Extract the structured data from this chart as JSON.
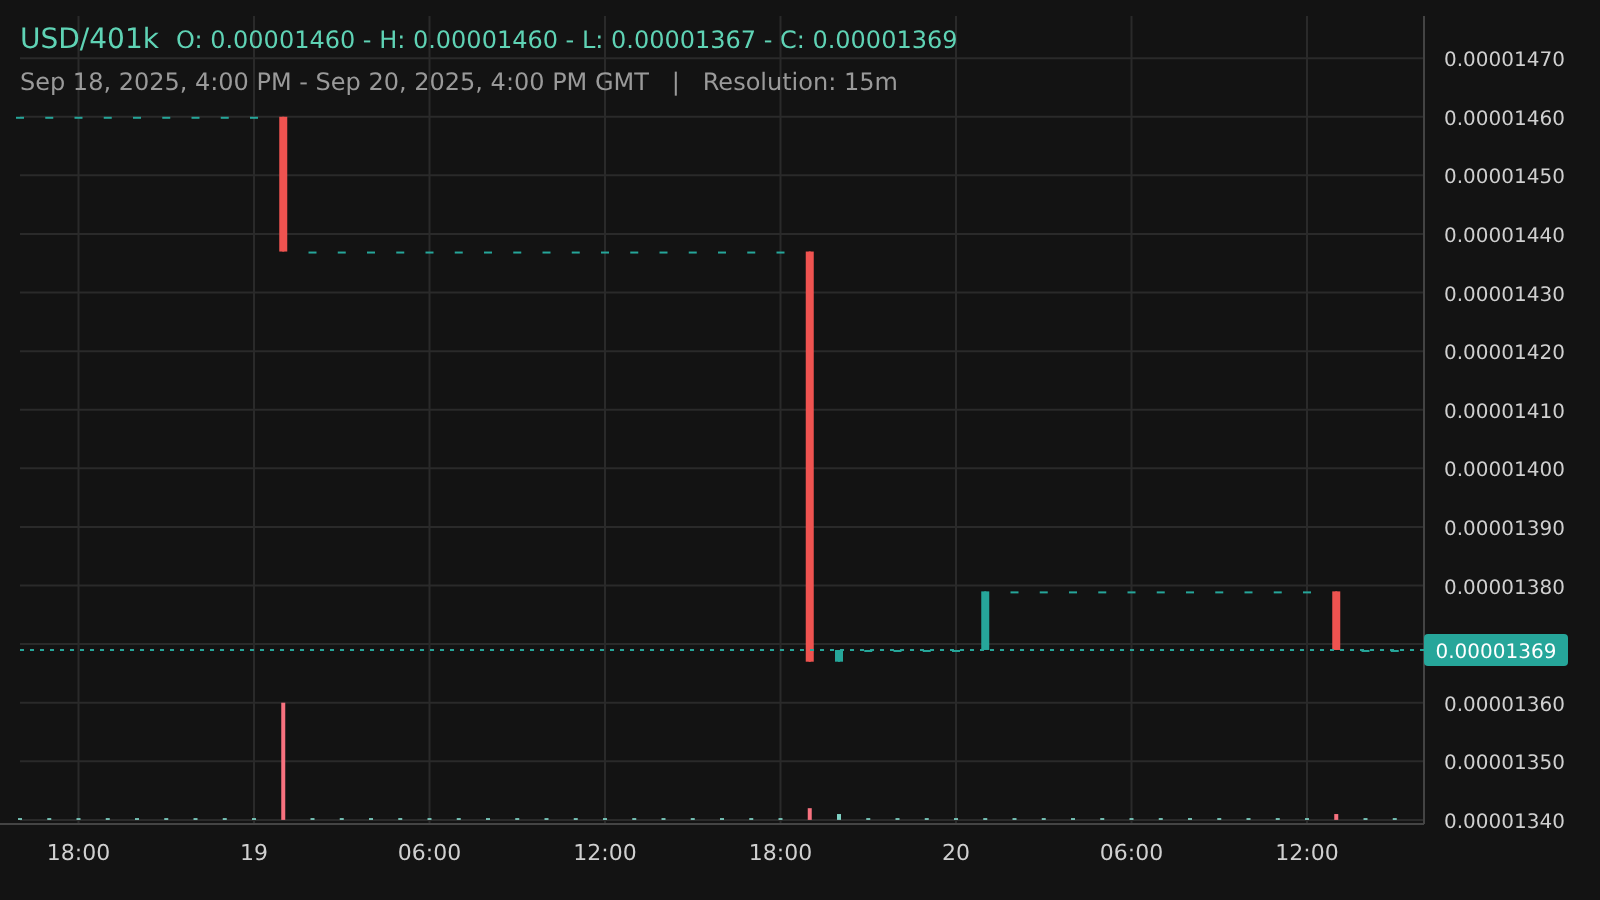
{
  "chart_data": {
    "type": "candlestick",
    "title": "USD/401k",
    "subtitle": "O: 0.00001460 - H: 0.00001460 - L: 0.00001367 - C: 0.00001369",
    "annotations": [
      "Sep 18, 2025, 4:00 PM - Sep 20, 2025, 4:00 PM GMT   |   Resolution: 15m"
    ],
    "x": [
      "2025-09-18T16:00",
      "2025-09-18T17:00",
      "2025-09-18T18:00",
      "2025-09-18T19:00",
      "2025-09-18T20:00",
      "2025-09-18T21:00",
      "2025-09-18T22:00",
      "2025-09-18T23:00",
      "2025-09-19T00:00",
      "2025-09-19T01:00",
      "2025-09-19T02:00",
      "2025-09-19T03:00",
      "2025-09-19T04:00",
      "2025-09-19T05:00",
      "2025-09-19T06:00",
      "2025-09-19T07:00",
      "2025-09-19T08:00",
      "2025-09-19T09:00",
      "2025-09-19T10:00",
      "2025-09-19T11:00",
      "2025-09-19T12:00",
      "2025-09-19T13:00",
      "2025-09-19T14:00",
      "2025-09-19T15:00",
      "2025-09-19T16:00",
      "2025-09-19T17:00",
      "2025-09-19T18:00",
      "2025-09-19T19:00",
      "2025-09-19T20:00",
      "2025-09-19T21:00",
      "2025-09-19T22:00",
      "2025-09-19T23:00",
      "2025-09-20T00:00",
      "2025-09-20T01:00",
      "2025-09-20T02:00",
      "2025-09-20T03:00",
      "2025-09-20T04:00",
      "2025-09-20T05:00",
      "2025-09-20T06:00",
      "2025-09-20T07:00",
      "2025-09-20T08:00",
      "2025-09-20T09:00",
      "2025-09-20T10:00",
      "2025-09-20T11:00",
      "2025-09-20T12:00",
      "2025-09-20T13:00",
      "2025-09-20T14:00",
      "2025-09-20T15:00"
    ],
    "ohlc": [
      [
        1.46e-05,
        1.46e-05,
        1.46e-05,
        1.46e-05
      ],
      [
        1.46e-05,
        1.46e-05,
        1.46e-05,
        1.46e-05
      ],
      [
        1.46e-05,
        1.46e-05,
        1.46e-05,
        1.46e-05
      ],
      [
        1.46e-05,
        1.46e-05,
        1.46e-05,
        1.46e-05
      ],
      [
        1.46e-05,
        1.46e-05,
        1.46e-05,
        1.46e-05
      ],
      [
        1.46e-05,
        1.46e-05,
        1.46e-05,
        1.46e-05
      ],
      [
        1.46e-05,
        1.46e-05,
        1.46e-05,
        1.46e-05
      ],
      [
        1.46e-05,
        1.46e-05,
        1.46e-05,
        1.46e-05
      ],
      [
        1.46e-05,
        1.46e-05,
        1.46e-05,
        1.46e-05
      ],
      [
        1.46e-05,
        1.46e-05,
        1.437e-05,
        1.437e-05
      ],
      [
        1.437e-05,
        1.437e-05,
        1.437e-05,
        1.437e-05
      ],
      [
        1.437e-05,
        1.437e-05,
        1.437e-05,
        1.437e-05
      ],
      [
        1.437e-05,
        1.437e-05,
        1.437e-05,
        1.437e-05
      ],
      [
        1.437e-05,
        1.437e-05,
        1.437e-05,
        1.437e-05
      ],
      [
        1.437e-05,
        1.437e-05,
        1.437e-05,
        1.437e-05
      ],
      [
        1.437e-05,
        1.437e-05,
        1.437e-05,
        1.437e-05
      ],
      [
        1.437e-05,
        1.437e-05,
        1.437e-05,
        1.437e-05
      ],
      [
        1.437e-05,
        1.437e-05,
        1.437e-05,
        1.437e-05
      ],
      [
        1.437e-05,
        1.437e-05,
        1.437e-05,
        1.437e-05
      ],
      [
        1.437e-05,
        1.437e-05,
        1.437e-05,
        1.437e-05
      ],
      [
        1.437e-05,
        1.437e-05,
        1.437e-05,
        1.437e-05
      ],
      [
        1.437e-05,
        1.437e-05,
        1.437e-05,
        1.437e-05
      ],
      [
        1.437e-05,
        1.437e-05,
        1.437e-05,
        1.437e-05
      ],
      [
        1.437e-05,
        1.437e-05,
        1.437e-05,
        1.437e-05
      ],
      [
        1.437e-05,
        1.437e-05,
        1.437e-05,
        1.437e-05
      ],
      [
        1.437e-05,
        1.437e-05,
        1.437e-05,
        1.437e-05
      ],
      [
        1.437e-05,
        1.437e-05,
        1.437e-05,
        1.437e-05
      ],
      [
        1.437e-05,
        1.437e-05,
        1.367e-05,
        1.367e-05
      ],
      [
        1.367e-05,
        1.369e-05,
        1.367e-05,
        1.369e-05
      ],
      [
        1.369e-05,
        1.369e-05,
        1.369e-05,
        1.369e-05
      ],
      [
        1.369e-05,
        1.369e-05,
        1.369e-05,
        1.369e-05
      ],
      [
        1.369e-05,
        1.369e-05,
        1.369e-05,
        1.369e-05
      ],
      [
        1.369e-05,
        1.369e-05,
        1.369e-05,
        1.369e-05
      ],
      [
        1.369e-05,
        1.379e-05,
        1.369e-05,
        1.379e-05
      ],
      [
        1.379e-05,
        1.379e-05,
        1.379e-05,
        1.379e-05
      ],
      [
        1.379e-05,
        1.379e-05,
        1.379e-05,
        1.379e-05
      ],
      [
        1.379e-05,
        1.379e-05,
        1.379e-05,
        1.379e-05
      ],
      [
        1.379e-05,
        1.379e-05,
        1.379e-05,
        1.379e-05
      ],
      [
        1.379e-05,
        1.379e-05,
        1.379e-05,
        1.379e-05
      ],
      [
        1.379e-05,
        1.379e-05,
        1.379e-05,
        1.379e-05
      ],
      [
        1.379e-05,
        1.379e-05,
        1.379e-05,
        1.379e-05
      ],
      [
        1.379e-05,
        1.379e-05,
        1.379e-05,
        1.379e-05
      ],
      [
        1.379e-05,
        1.379e-05,
        1.379e-05,
        1.379e-05
      ],
      [
        1.379e-05,
        1.379e-05,
        1.379e-05,
        1.379e-05
      ],
      [
        1.379e-05,
        1.379e-05,
        1.379e-05,
        1.379e-05
      ],
      [
        1.379e-05,
        1.379e-05,
        1.369e-05,
        1.369e-05
      ],
      [
        1.369e-05,
        1.369e-05,
        1.369e-05,
        1.369e-05
      ],
      [
        1.369e-05,
        1.369e-05,
        1.369e-05,
        1.369e-05
      ]
    ],
    "colors": [
      "#26a69a",
      "#26a69a",
      "#26a69a",
      "#26a69a",
      "#26a69a",
      "#26a69a",
      "#26a69a",
      "#26a69a",
      "#26a69a",
      "#ef5350",
      "#26a69a",
      "#26a69a",
      "#26a69a",
      "#26a69a",
      "#26a69a",
      "#26a69a",
      "#26a69a",
      "#26a69a",
      "#26a69a",
      "#26a69a",
      "#26a69a",
      "#26a69a",
      "#26a69a",
      "#26a69a",
      "#26a69a",
      "#26a69a",
      "#26a69a",
      "#ef5350",
      "#26a69a",
      "#26a69a",
      "#26a69a",
      "#26a69a",
      "#26a69a",
      "#26a69a",
      "#26a69a",
      "#26a69a",
      "#26a69a",
      "#26a69a",
      "#26a69a",
      "#26a69a",
      "#26a69a",
      "#26a69a",
      "#26a69a",
      "#26a69a",
      "#26a69a",
      "#ef5350",
      "#26a69a",
      "#26a69a"
    ],
    "series": [
      {
        "type": "bar",
        "values": [
          3e-09,
          3e-09,
          3e-09,
          3e-09,
          3e-09,
          3e-09,
          3e-09,
          3e-09,
          3e-09,
          2e-07,
          3e-09,
          3e-09,
          3e-09,
          3e-09,
          3e-09,
          3e-09,
          3e-09,
          3e-09,
          3e-09,
          3e-09,
          3e-09,
          3e-09,
          3e-09,
          3e-09,
          3e-09,
          3e-09,
          3e-09,
          2e-08,
          1e-08,
          3e-09,
          3e-09,
          3e-09,
          3e-09,
          3e-09,
          3e-09,
          3e-09,
          3e-09,
          3e-09,
          3e-09,
          3e-09,
          3e-09,
          3e-09,
          3e-09,
          3e-09,
          3e-09,
          1e-08,
          3e-09,
          3e-09
        ],
        "base": [
          1.34e-05,
          1.34e-05,
          1.34e-05,
          1.34e-05,
          1.34e-05,
          1.34e-05,
          1.34e-05,
          1.34e-05,
          1.34e-05,
          1.34e-05,
          1.34e-05,
          1.34e-05,
          1.34e-05,
          1.34e-05,
          1.34e-05,
          1.34e-05,
          1.34e-05,
          1.34e-05,
          1.34e-05,
          1.34e-05,
          1.34e-05,
          1.34e-05,
          1.34e-05,
          1.34e-05,
          1.34e-05,
          1.34e-05,
          1.34e-05,
          1.34e-05,
          1.34e-05,
          1.34e-05,
          1.34e-05,
          1.34e-05,
          1.34e-05,
          1.34e-05,
          1.34e-05,
          1.34e-05,
          1.34e-05,
          1.34e-05,
          1.34e-05,
          1.34e-05,
          1.34e-05,
          1.34e-05,
          1.34e-05,
          1.34e-05,
          1.34e-05,
          1.34e-05,
          1.34e-05,
          1.34e-05
        ],
        "colors": [
          "#7fd1c4",
          "#7fd1c4",
          "#7fd1c4",
          "#7fd1c4",
          "#7fd1c4",
          "#7fd1c4",
          "#7fd1c4",
          "#7fd1c4",
          "#7fd1c4",
          "#f7727f",
          "#7fd1c4",
          "#7fd1c4",
          "#7fd1c4",
          "#7fd1c4",
          "#7fd1c4",
          "#7fd1c4",
          "#7fd1c4",
          "#7fd1c4",
          "#7fd1c4",
          "#7fd1c4",
          "#7fd1c4",
          "#7fd1c4",
          "#7fd1c4",
          "#7fd1c4",
          "#7fd1c4",
          "#7fd1c4",
          "#7fd1c4",
          "#f7727f",
          "#7fd1c4",
          "#7fd1c4",
          "#7fd1c4",
          "#7fd1c4",
          "#7fd1c4",
          "#7fd1c4",
          "#7fd1c4",
          "#7fd1c4",
          "#7fd1c4",
          "#7fd1c4",
          "#7fd1c4",
          "#7fd1c4",
          "#7fd1c4",
          "#7fd1c4",
          "#7fd1c4",
          "#7fd1c4",
          "#7fd1c4",
          "#f7727f",
          "#7fd1c4",
          "#7fd1c4"
        ]
      }
    ],
    "xlim": [
      "2025-09-18T16:00",
      "2025-09-20T16:00"
    ],
    "xticks": [
      {
        "value": "2025-09-18T18:00",
        "label": "18:00"
      },
      {
        "value": "2025-09-19T00:00",
        "label": "19"
      },
      {
        "value": "2025-09-19T06:00",
        "label": "06:00"
      },
      {
        "value": "2025-09-19T12:00",
        "label": "12:00"
      },
      {
        "value": "2025-09-19T18:00",
        "label": "18:00"
      },
      {
        "value": "2025-09-20T00:00",
        "label": "20"
      },
      {
        "value": "2025-09-20T06:00",
        "label": "06:00"
      },
      {
        "value": "2025-09-20T12:00",
        "label": "12:00"
      }
    ],
    "ylim": [
      1.3393e-05,
      1.4772e-05
    ],
    "yticks": [
      {
        "value": 1.34e-05,
        "label": "0.00001340"
      },
      {
        "value": 1.35e-05,
        "label": "0.00001350"
      },
      {
        "value": 1.36e-05,
        "label": "0.00001360"
      },
      {
        "value": 1.37e-05,
        "label": null
      },
      {
        "value": 1.38e-05,
        "label": "0.00001380"
      },
      {
        "value": 1.39e-05,
        "label": "0.00001390"
      },
      {
        "value": 1.4e-05,
        "label": "0.00001400"
      },
      {
        "value": 1.41e-05,
        "label": "0.00001410"
      },
      {
        "value": 1.42e-05,
        "label": "0.00001420"
      },
      {
        "value": 1.43e-05,
        "label": "0.00001430"
      },
      {
        "value": 1.44e-05,
        "label": "0.00001440"
      },
      {
        "value": 1.45e-05,
        "label": "0.00001450"
      },
      {
        "value": 1.46e-05,
        "label": "0.00001460"
      },
      {
        "value": 1.47e-05,
        "label": "0.00001470"
      }
    ],
    "ref_lines": [
      {
        "axis": "y",
        "value": 1.369e-05,
        "label": "0.00001369",
        "color": "#26a69a",
        "line_style": "dotted"
      }
    ],
    "grid": true
  }
}
